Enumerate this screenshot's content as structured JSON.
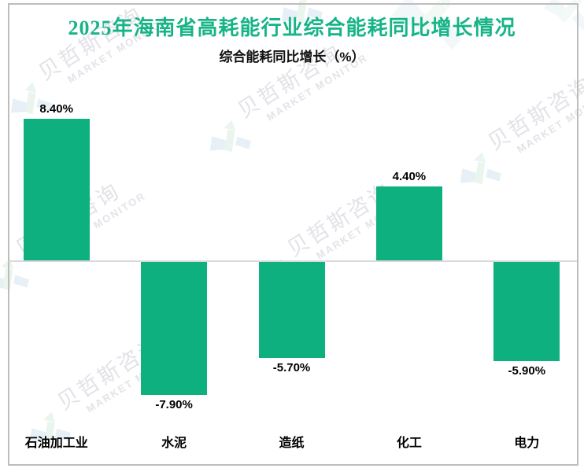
{
  "page": {
    "title": "2025年海南省高耗能行业综合能耗同比增长情况",
    "subtitle": "综合能耗同比增长（%）"
  },
  "chart_data": {
    "type": "bar",
    "title": "2025年海南省高耗能行业综合能耗同比增长情况",
    "subtitle": "综合能耗同比增长（%）",
    "categories": [
      "石油加工业",
      "水泥",
      "造纸",
      "化工",
      "电力"
    ],
    "values": [
      8.4,
      -7.9,
      -5.7,
      4.4,
      -5.9
    ],
    "value_labels": [
      "8.40%",
      "-7.90%",
      "-5.70%",
      "4.40%",
      "-5.90%"
    ],
    "xlabel": "",
    "ylabel": "",
    "ylim": [
      -9,
      9
    ],
    "grid": false,
    "legend": false,
    "bar_color": "#0fb07f",
    "zero_line_color": "#d9d9d9"
  },
  "watermark": {
    "cn": "贝哲斯咨询",
    "en": "MARKET MONITOR"
  },
  "colors": {
    "title_green": "#17b487",
    "bar_green": "#0fb07f",
    "border_gray": "#bdbdbd",
    "axis_gray": "#d9d9d9",
    "watermark_text": "#e2e2e8",
    "watermark_logo_blue": "#e4eff6",
    "watermark_logo_green": "#e7f5ec"
  }
}
